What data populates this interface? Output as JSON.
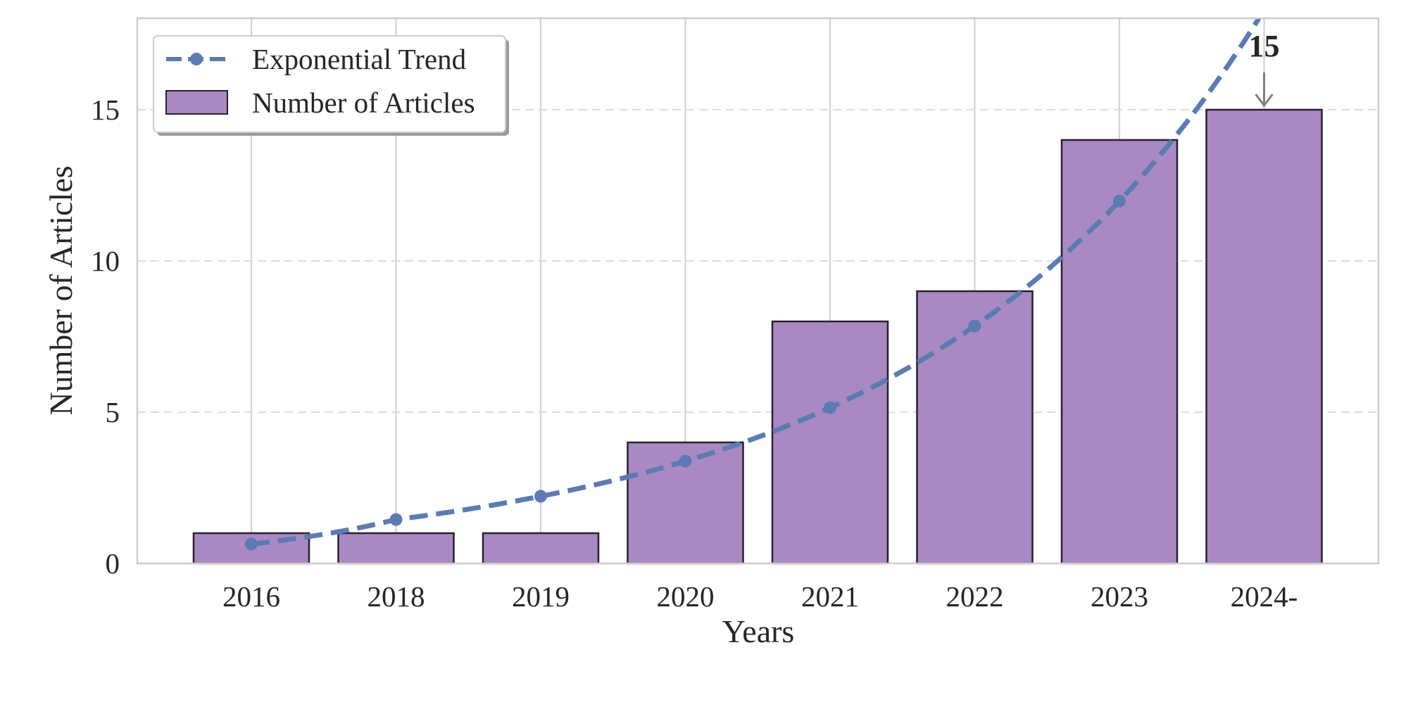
{
  "chart_data": {
    "type": "bar",
    "xlabel": "Years",
    "ylabel": "Number of Articles",
    "categories": [
      "2016",
      "2018",
      "2019",
      "2020",
      "2021",
      "2022",
      "2023",
      "2024-"
    ],
    "ylim": [
      0,
      18
    ],
    "yticks": [
      0,
      5,
      10,
      15
    ],
    "series": [
      {
        "name": "Number of Articles",
        "kind": "bar",
        "values": [
          1,
          1,
          1,
          4,
          8,
          9,
          14,
          15
        ]
      },
      {
        "name": "Exponential Trend",
        "kind": "line-dashed-markers",
        "values": [
          0.64,
          1.45,
          2.22,
          3.38,
          5.15,
          7.85,
          11.98,
          18.3
        ]
      }
    ],
    "annotation": {
      "text": "15",
      "category": "2024-",
      "value": 15,
      "arrow": "down"
    },
    "legend_position": "upper-left",
    "grid": {
      "vertical": true,
      "horizontal": "dashed"
    },
    "colors": {
      "bar_fill": "#a889c2",
      "bar_edge": "#2b1f2e",
      "trend": "#5b7bb4",
      "grid": "#d2d2d2",
      "frame": "#cccccc",
      "arrow": "#808080"
    }
  }
}
